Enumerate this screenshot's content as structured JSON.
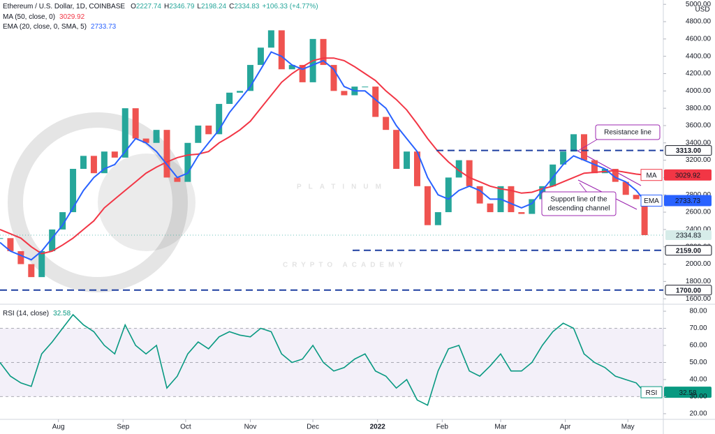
{
  "chart_data": [
    {
      "type": "candlestick",
      "title": "Ethereum / U.S. Dollar, 1D, COINBASE",
      "ohlc": [
        {
          "label": "O",
          "value": 2227.74
        },
        {
          "label": "H",
          "value": 2346.79
        },
        {
          "label": "L",
          "value": 2198.24
        },
        {
          "label": "C",
          "value": 2334.83
        }
      ],
      "change": "+106.33 (+4.77%)",
      "unit": "USD",
      "up_color": "#26a69a",
      "down_color": "#ef5350",
      "x": [
        0,
        5,
        10,
        15,
        20,
        25,
        30,
        35,
        40,
        45,
        50,
        55,
        60,
        65,
        70,
        75,
        80,
        85,
        90,
        95,
        100,
        105,
        110,
        115,
        120,
        125,
        130,
        135,
        140,
        145,
        150,
        155,
        160,
        165,
        170,
        175,
        180,
        185,
        190,
        195,
        200,
        205,
        210,
        215,
        220,
        225,
        230,
        235,
        240,
        245,
        250,
        255,
        260,
        265,
        270,
        275,
        280,
        285,
        290,
        295,
        300,
        305,
        309
      ],
      "closes": [
        2300,
        2150,
        2000,
        1850,
        2150,
        2400,
        2600,
        3100,
        3250,
        3050,
        3300,
        3230,
        3800,
        3450,
        3400,
        3550,
        3000,
        2950,
        3400,
        3600,
        3500,
        3850,
        3980,
        4000,
        4300,
        4500,
        4700,
        4250,
        4300,
        4100,
        4600,
        4300,
        4000,
        3950,
        4050,
        4050,
        3700,
        3550,
        3100,
        3300,
        2900,
        2450,
        2600,
        3000,
        3200,
        2900,
        2700,
        2600,
        2900,
        2600,
        2580,
        2750,
        2900,
        3150,
        3300,
        3500,
        3200,
        3050,
        3100,
        2950,
        2800,
        2750,
        2334.83
      ],
      "series": [
        {
          "name": "MA (50, close, 0)",
          "badge": "MA",
          "color": "#f23645",
          "values": [
            2400,
            2350,
            2300,
            2200,
            2120,
            2150,
            2220,
            2300,
            2400,
            2500,
            2650,
            2750,
            2850,
            2950,
            3050,
            3120,
            3180,
            3230,
            3260,
            3270,
            3300,
            3400,
            3470,
            3550,
            3650,
            3800,
            3950,
            4100,
            4200,
            4280,
            4350,
            4380,
            4380,
            4350,
            4280,
            4200,
            4120,
            4000,
            3900,
            3780,
            3620,
            3450,
            3300,
            3180,
            3080,
            3000,
            2950,
            2900,
            2870,
            2850,
            2820,
            2830,
            2870,
            2900,
            2950,
            3000,
            3050,
            3060,
            3070,
            3080,
            3060,
            3040,
            3029.92
          ]
        },
        {
          "name": "EMA (20, close, 0, SMA, 5)",
          "badge": "EMA",
          "color": "#2962ff",
          "values": [
            2250,
            2150,
            2100,
            2050,
            2150,
            2300,
            2450,
            2650,
            2850,
            3000,
            3100,
            3150,
            3300,
            3450,
            3400,
            3300,
            3150,
            3000,
            3050,
            3250,
            3400,
            3550,
            3750,
            3900,
            4050,
            4250,
            4450,
            4400,
            4300,
            4250,
            4300,
            4350,
            4250,
            4050,
            4000,
            4000,
            3900,
            3800,
            3600,
            3450,
            3300,
            3000,
            2800,
            2750,
            2850,
            2900,
            2850,
            2750,
            2750,
            2700,
            2650,
            2700,
            2850,
            3000,
            3150,
            3250,
            3200,
            3150,
            3100,
            3000,
            2950,
            2850,
            2733.73
          ]
        }
      ],
      "xlim": [
        0,
        318
      ],
      "ylim": [
        1545,
        5050
      ],
      "yticks": [
        {
          "value": 1600,
          "label": "1600.00"
        },
        {
          "value": 1800,
          "label": "1800.00"
        },
        {
          "value": 2000,
          "label": "2000.00"
        },
        {
          "value": 2200,
          "label": "2200.00"
        },
        {
          "value": 2400,
          "label": "2400.00"
        },
        {
          "value": 2600,
          "label": "2600.00"
        },
        {
          "value": 2800,
          "label": "2800.00"
        },
        {
          "value": 3000,
          "label": "3000.00"
        },
        {
          "value": 3200,
          "label": "3200.00"
        },
        {
          "value": 3400,
          "label": "3400.00"
        },
        {
          "value": 3600,
          "label": "3600.00"
        },
        {
          "value": 3800,
          "label": "3800.00"
        },
        {
          "value": 4000,
          "label": "4000.00"
        },
        {
          "value": 4200,
          "label": "4200.00"
        },
        {
          "value": 4400,
          "label": "4400.00"
        },
        {
          "value": 4600,
          "label": "4600.00"
        },
        {
          "value": 4800,
          "label": "4800.00"
        },
        {
          "value": 5000,
          "label": "5000.00"
        }
      ],
      "levels": [
        {
          "value": 3313,
          "label": "3313.00"
        },
        {
          "value": 2159,
          "label": "2159.00"
        },
        {
          "value": 1700,
          "label": "1700.00"
        }
      ],
      "level_color": "#1e3fa0",
      "annotations": {
        "resistance": [
          "Resistance line"
        ],
        "support": [
          "Support line of the",
          "descending channel"
        ]
      },
      "annotation_color": "#9c27b0",
      "watermark": [
        "PLATINUM",
        "CRYPTO ACADEMY"
      ]
    },
    {
      "type": "line",
      "name": "RSI (14, close)",
      "badge": "RSI",
      "color": "#089981",
      "x": [
        0,
        5,
        10,
        15,
        20,
        25,
        30,
        35,
        40,
        45,
        50,
        55,
        60,
        65,
        70,
        75,
        80,
        85,
        90,
        95,
        100,
        105,
        110,
        115,
        120,
        125,
        130,
        135,
        140,
        145,
        150,
        155,
        160,
        165,
        170,
        175,
        180,
        185,
        190,
        195,
        200,
        205,
        210,
        215,
        220,
        225,
        230,
        235,
        240,
        245,
        250,
        255,
        260,
        265,
        270,
        275,
        280,
        285,
        290,
        295,
        300,
        305,
        309
      ],
      "values": [
        50,
        42,
        38,
        36,
        55,
        62,
        70,
        78,
        72,
        68,
        60,
        55,
        72,
        60,
        55,
        60,
        35,
        42,
        55,
        62,
        58,
        65,
        68,
        66,
        65,
        70,
        68,
        55,
        50,
        52,
        60,
        50,
        45,
        47,
        52,
        55,
        45,
        42,
        35,
        40,
        28,
        25,
        45,
        58,
        60,
        45,
        42,
        48,
        55,
        45,
        45,
        50,
        60,
        68,
        73,
        70,
        55,
        50,
        47,
        42,
        40,
        38,
        32.58
      ],
      "band": [
        30,
        70
      ],
      "xlim": [
        0,
        318
      ],
      "ylim": [
        17.1,
        83.7
      ],
      "yticks": [
        {
          "value": 20,
          "label": "20.00"
        },
        {
          "value": 30,
          "label": "30.00"
        },
        {
          "value": 40,
          "label": "40.00"
        },
        {
          "value": 50,
          "label": "50.00"
        },
        {
          "value": 60,
          "label": "60.00"
        },
        {
          "value": 70,
          "label": "70.00"
        },
        {
          "value": 80,
          "label": "80.00"
        }
      ],
      "xticks": [
        {
          "value": 28,
          "label": "Aug"
        },
        {
          "value": 59,
          "label": "Sep"
        },
        {
          "value": 89,
          "label": "Oct"
        },
        {
          "value": 120,
          "label": "Nov"
        },
        {
          "value": 150,
          "label": "Dec"
        },
        {
          "value": 181,
          "label": "2022"
        },
        {
          "value": 212,
          "label": "Feb"
        },
        {
          "value": 240,
          "label": "Mar"
        },
        {
          "value": 271,
          "label": "Apr"
        },
        {
          "value": 301,
          "label": "May"
        }
      ]
    }
  ]
}
